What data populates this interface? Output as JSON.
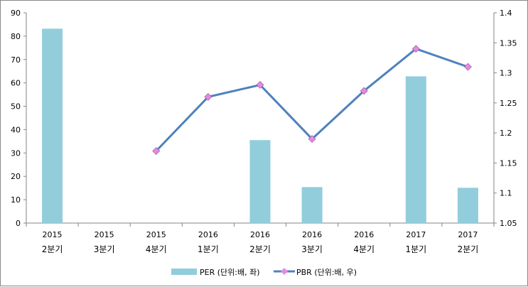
{
  "chart_data": {
    "type": "bar+line",
    "categories": [
      [
        "2015",
        "2분기"
      ],
      [
        "2015",
        "3분기"
      ],
      [
        "2015",
        "4분기"
      ],
      [
        "2016",
        "1분기"
      ],
      [
        "2016",
        "2분기"
      ],
      [
        "2016",
        "3분기"
      ],
      [
        "2016",
        "4분기"
      ],
      [
        "2017",
        "1분기"
      ],
      [
        "2017",
        "2분기"
      ]
    ],
    "series": [
      {
        "name": "PER (단위:배, 좌)",
        "type": "bar",
        "axis": "left",
        "color": "#92CDDC",
        "values": [
          83.2,
          null,
          null,
          null,
          35.5,
          15.4,
          null,
          62.8,
          15.1
        ]
      },
      {
        "name": "PBR (단위:배, 우)",
        "type": "line",
        "axis": "right",
        "color": "#4F81BD",
        "marker_color": "#E38BE3",
        "values": [
          null,
          null,
          1.17,
          1.26,
          1.28,
          1.19,
          1.27,
          1.34,
          1.31
        ]
      }
    ],
    "y_left": {
      "range": [
        0,
        90
      ],
      "ticks": [
        "0",
        "10",
        "20",
        "30",
        "40",
        "50",
        "60",
        "70",
        "80",
        "90"
      ]
    },
    "y_right": {
      "range": [
        1.05,
        1.4
      ],
      "ticks": [
        "1.05",
        "1.1",
        "1.15",
        "1.2",
        "1.25",
        "1.3",
        "1.35",
        "1.4"
      ]
    },
    "grid": false,
    "legend": "bottom"
  }
}
